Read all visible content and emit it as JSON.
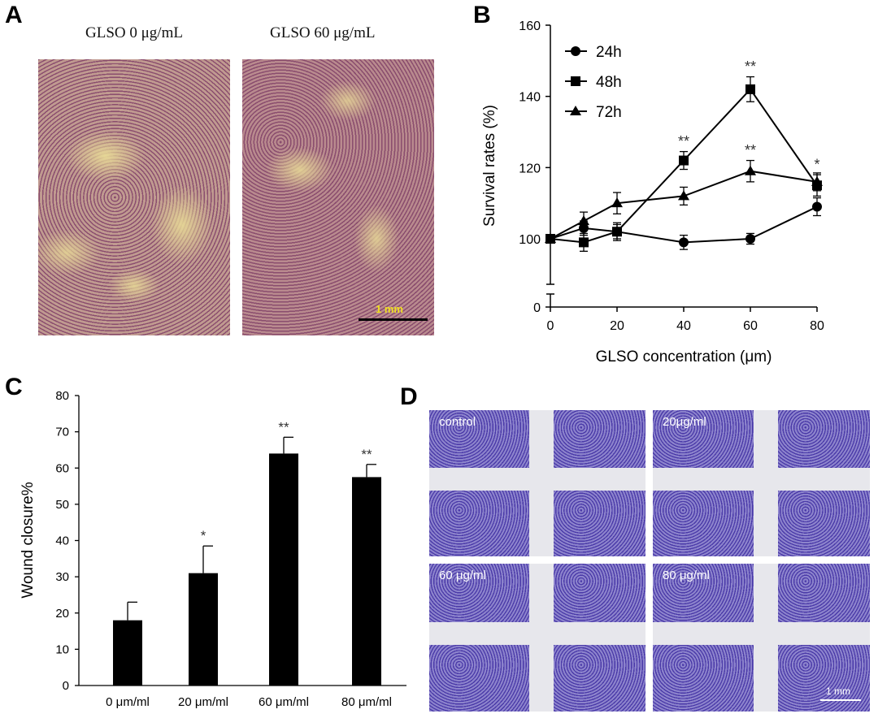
{
  "panels": {
    "a": {
      "letter": "A",
      "caption_left": "GLSO  0 μg/mL",
      "caption_right": "GLSO  60 μg/mL",
      "scale_label": "1 mm"
    },
    "b": {
      "letter": "B"
    },
    "c": {
      "letter": "C"
    },
    "d": {
      "letter": "D",
      "labels": [
        "control",
        "20μg/ml",
        "60 μg/ml",
        "80 μg/ml"
      ],
      "scale_label": "1 mm"
    }
  },
  "chart_data": [
    {
      "type": "line",
      "panel": "B",
      "xlabel": "GLSO concentration (μm)",
      "ylabel": "Survival rates (%)",
      "x": [
        0,
        10,
        20,
        40,
        60,
        80
      ],
      "xticks": [
        0,
        20,
        40,
        60,
        80
      ],
      "yticks": [
        0,
        100,
        120,
        140,
        160
      ],
      "ylim": [
        0,
        160
      ],
      "axis_break": true,
      "legend": "top-left",
      "series": [
        {
          "name": "24h",
          "marker": "circle",
          "values": [
            100,
            103,
            102,
            99,
            100,
            109
          ],
          "errors": [
            1,
            2,
            2,
            2,
            1.5,
            2.5
          ]
        },
        {
          "name": "48h",
          "marker": "square",
          "values": [
            100,
            99,
            102,
            122,
            142,
            115
          ],
          "errors": [
            1,
            2.5,
            2.5,
            2.5,
            3.5,
            3
          ]
        },
        {
          "name": "72h",
          "marker": "triangle",
          "values": [
            100,
            105,
            110,
            112,
            119,
            116
          ],
          "errors": [
            1,
            2.5,
            3,
            2.5,
            3,
            2.5
          ]
        }
      ],
      "annotations": [
        {
          "x": 40,
          "y": 126,
          "text": "**"
        },
        {
          "x": 60,
          "y": 147,
          "text": "**"
        },
        {
          "x": 60,
          "y": 123.5,
          "text": "**"
        },
        {
          "x": 80,
          "y": 119.5,
          "text": "*"
        }
      ]
    },
    {
      "type": "bar",
      "panel": "C",
      "categories": [
        "0 μm/ml",
        "20 μm/ml",
        "60 μm/ml",
        "80 μm/ml"
      ],
      "values": [
        18,
        31,
        64,
        57.5
      ],
      "errors": [
        5,
        7.5,
        4.5,
        3.5
      ],
      "significance": [
        "",
        "*",
        "**",
        "**"
      ],
      "ylabel": "Wound  closure%",
      "ylim": [
        0,
        80
      ],
      "yticks": [
        0,
        10,
        20,
        30,
        40,
        50,
        60,
        70,
        80
      ],
      "color": "#000000"
    }
  ]
}
